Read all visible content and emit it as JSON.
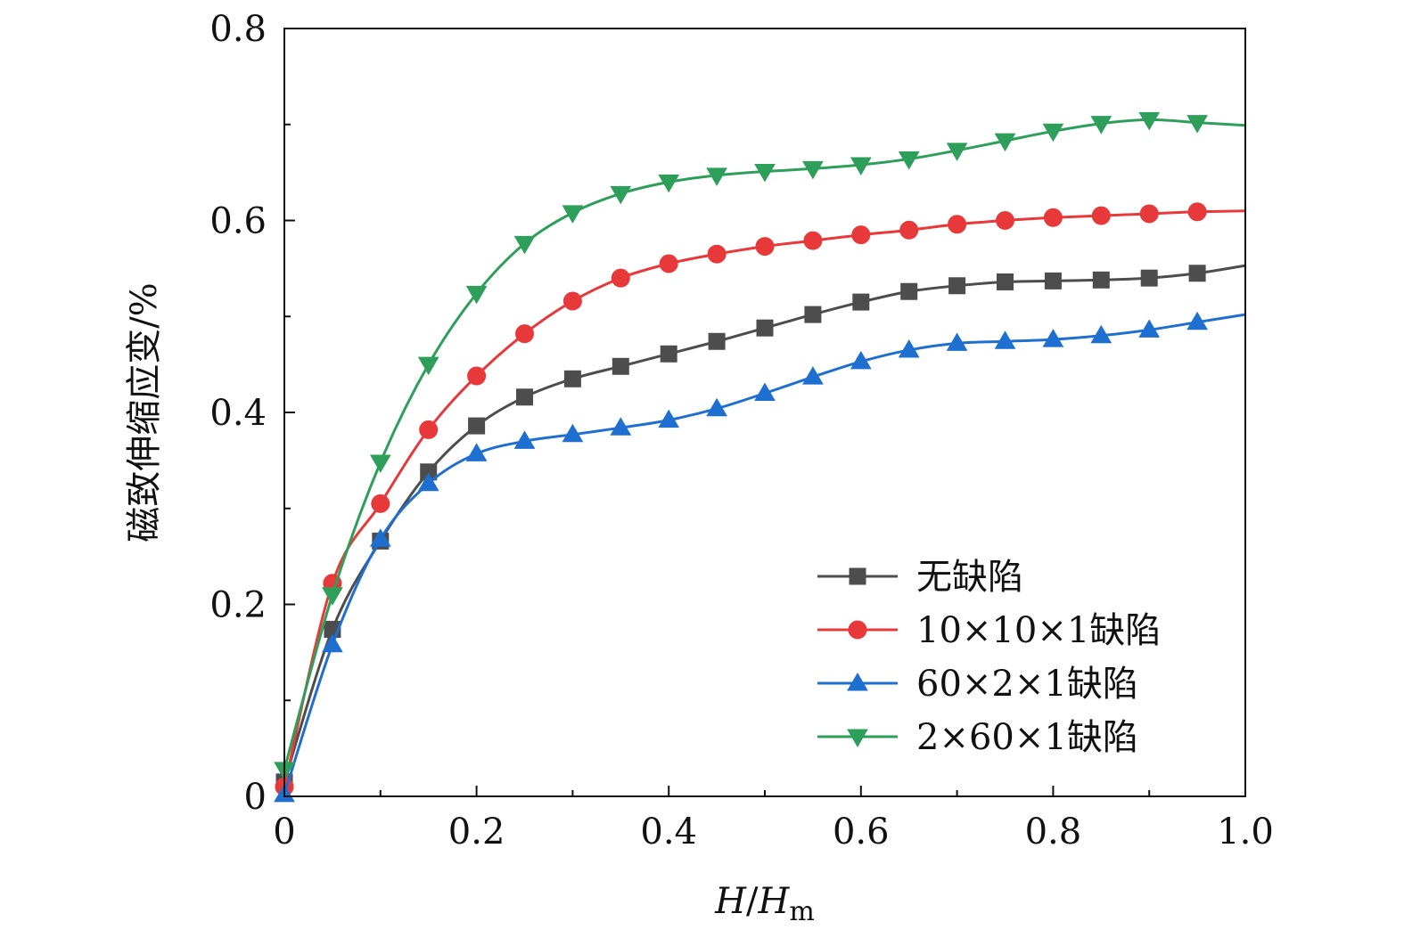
{
  "chart_data": {
    "type": "line",
    "title": "",
    "xlabel": {
      "main": "H",
      "slash": "/",
      "main2": "H",
      "sub": "m"
    },
    "ylabel": "磁致伸缩应变/%",
    "xlim": [
      0,
      1.0
    ],
    "ylim": [
      0,
      0.8
    ],
    "x_ticks": [
      0,
      0.2,
      0.4,
      0.6,
      0.8,
      1.0
    ],
    "x_tick_labels": [
      "0",
      "0.2",
      "0.4",
      "0.6",
      "0.8",
      "1.0"
    ],
    "x_minor_ticks": [
      0.1,
      0.3,
      0.5,
      0.7,
      0.9
    ],
    "y_ticks": [
      0,
      0.2,
      0.4,
      0.6,
      0.8
    ],
    "y_tick_labels": [
      "0",
      "0.2",
      "0.4",
      "0.6",
      "0.8"
    ],
    "y_minor_ticks": [
      0.1,
      0.3,
      0.5,
      0.7
    ],
    "grid": false,
    "legend_position": "bottom-right",
    "marker_x": [
      0.0,
      0.05,
      0.1,
      0.15,
      0.2,
      0.25,
      0.3,
      0.35,
      0.4,
      0.45,
      0.5,
      0.55,
      0.6,
      0.65,
      0.7,
      0.75,
      0.8,
      0.85,
      0.9,
      0.95
    ],
    "series": [
      {
        "name": "无缺陷",
        "color": "#4d4d4d",
        "marker": "square",
        "values": [
          0.015,
          0.174,
          0.266,
          0.338,
          0.386,
          0.416,
          0.435,
          0.448,
          0.461,
          0.474,
          0.488,
          0.502,
          0.515,
          0.526,
          0.532,
          0.536,
          0.537,
          0.538,
          0.54,
          0.545
        ],
        "end_value": 0.553
      },
      {
        "name": "10×10×1缺陷",
        "color": "#e8393a",
        "marker": "circle",
        "values": [
          0.01,
          0.222,
          0.305,
          0.382,
          0.438,
          0.482,
          0.516,
          0.54,
          0.555,
          0.565,
          0.573,
          0.579,
          0.585,
          0.59,
          0.596,
          0.6,
          0.603,
          0.605,
          0.607,
          0.609
        ],
        "end_value": 0.61
      },
      {
        "name": "60×2×1缺陷",
        "color": "#1f6fd1",
        "marker": "triangle-up",
        "values": [
          0.002,
          0.158,
          0.268,
          0.326,
          0.357,
          0.37,
          0.377,
          0.384,
          0.392,
          0.404,
          0.42,
          0.437,
          0.453,
          0.465,
          0.472,
          0.474,
          0.476,
          0.48,
          0.486,
          0.494
        ],
        "end_value": 0.502
      },
      {
        "name": "2×60×1缺陷",
        "color": "#2e9f5a",
        "marker": "triangle-down",
        "values": [
          0.028,
          0.21,
          0.348,
          0.45,
          0.524,
          0.576,
          0.608,
          0.628,
          0.64,
          0.647,
          0.651,
          0.654,
          0.658,
          0.664,
          0.673,
          0.683,
          0.693,
          0.701,
          0.705,
          0.702
        ],
        "end_value": 0.699
      }
    ]
  }
}
